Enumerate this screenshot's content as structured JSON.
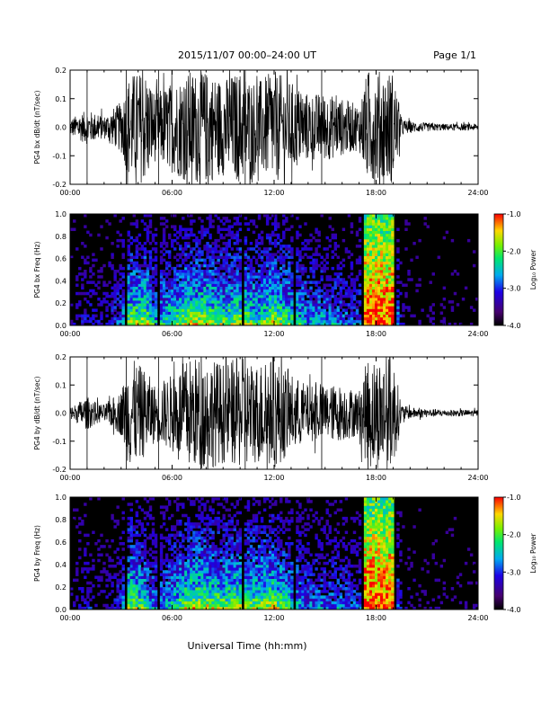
{
  "header": {
    "title": "2015/11/07   00:00–24:00 UT",
    "page": "Page 1/1"
  },
  "x_axis_label": "Universal Time (hh:mm)",
  "colorbar": {
    "label": "Log₁₀ Power",
    "ticks": [
      "-1.0",
      "-2.0",
      "-3.0",
      "-4.0"
    ],
    "range": [
      -4.0,
      -1.0
    ]
  },
  "chart_data": [
    {
      "type": "line",
      "ylabel": "PG4 bx dB/dt (nT/sec)",
      "xlim": [
        0,
        24
      ],
      "ylim": [
        -0.2,
        0.2
      ],
      "xticks": [
        "00:00",
        "06:00",
        "12:00",
        "18:00",
        "24:00"
      ],
      "yticks": [
        "0.2",
        "0.1",
        "0.0",
        "-0.1",
        "-0.2"
      ],
      "amplitude_envelope": {
        "x": [
          0,
          1,
          1.5,
          2,
          3,
          3.5,
          4.5,
          5,
          6,
          7,
          8,
          9,
          10,
          11,
          12,
          13,
          14,
          15,
          16,
          17,
          17.5,
          18,
          19,
          19.5,
          20,
          21,
          22,
          23,
          24
        ],
        "amp": [
          0.03,
          0.06,
          0.05,
          0.04,
          0.09,
          0.19,
          0.2,
          0.12,
          0.16,
          0.2,
          0.2,
          0.17,
          0.2,
          0.16,
          0.2,
          0.16,
          0.12,
          0.12,
          0.1,
          0.08,
          0.2,
          0.2,
          0.2,
          0.03,
          0.02,
          0.015,
          0.012,
          0.012,
          0.012
        ]
      }
    },
    {
      "type": "heatmap",
      "ylabel": "PG4 bx Freq (Hz)",
      "xlim": [
        0,
        24
      ],
      "ylim": [
        0,
        1.0
      ],
      "xticks": [
        "00:00",
        "06:00",
        "12:00",
        "18:00",
        "24:00"
      ],
      "yticks": [
        "1.0",
        "0.8",
        "0.6",
        "0.4",
        "0.2",
        "0.0"
      ],
      "data_gaps_hour": [
        3.2,
        5.2,
        7.2,
        10.2,
        11.2,
        13.2,
        15.2,
        17.2,
        19.2
      ]
    },
    {
      "type": "line",
      "ylabel": "PG4 by dB/dt (nT/sec)",
      "xlim": [
        0,
        24
      ],
      "ylim": [
        -0.2,
        0.2
      ],
      "xticks": [
        "00:00",
        "06:00",
        "12:00",
        "18:00",
        "24:00"
      ],
      "yticks": [
        "0.2",
        "0.1",
        "0.0",
        "-0.1",
        "-0.2"
      ],
      "amplitude_envelope": {
        "x": [
          0,
          1,
          1.5,
          2,
          3,
          3.5,
          4.5,
          5,
          6,
          7,
          8,
          9,
          10,
          11,
          12,
          13,
          14,
          15,
          16,
          17,
          17.5,
          18,
          19,
          19.5,
          20,
          21,
          22,
          23,
          24
        ],
        "amp": [
          0.02,
          0.06,
          0.04,
          0.03,
          0.08,
          0.2,
          0.15,
          0.1,
          0.14,
          0.2,
          0.2,
          0.18,
          0.2,
          0.18,
          0.2,
          0.14,
          0.1,
          0.1,
          0.1,
          0.08,
          0.2,
          0.2,
          0.2,
          0.03,
          0.02,
          0.015,
          0.012,
          0.012,
          0.012
        ]
      }
    },
    {
      "type": "heatmap",
      "ylabel": "PG4 by Freq (Hz)",
      "xlim": [
        0,
        24
      ],
      "ylim": [
        0,
        1.0
      ],
      "xticks": [
        "00:00",
        "06:00",
        "12:00",
        "18:00",
        "24:00"
      ],
      "yticks": [
        "1.0",
        "0.8",
        "0.6",
        "0.4",
        "0.2",
        "0.0"
      ],
      "data_gaps_hour": [
        3.2,
        5.2,
        7.2,
        10.2,
        11.2,
        13.2,
        15.2,
        17.2,
        19.2
      ]
    }
  ]
}
